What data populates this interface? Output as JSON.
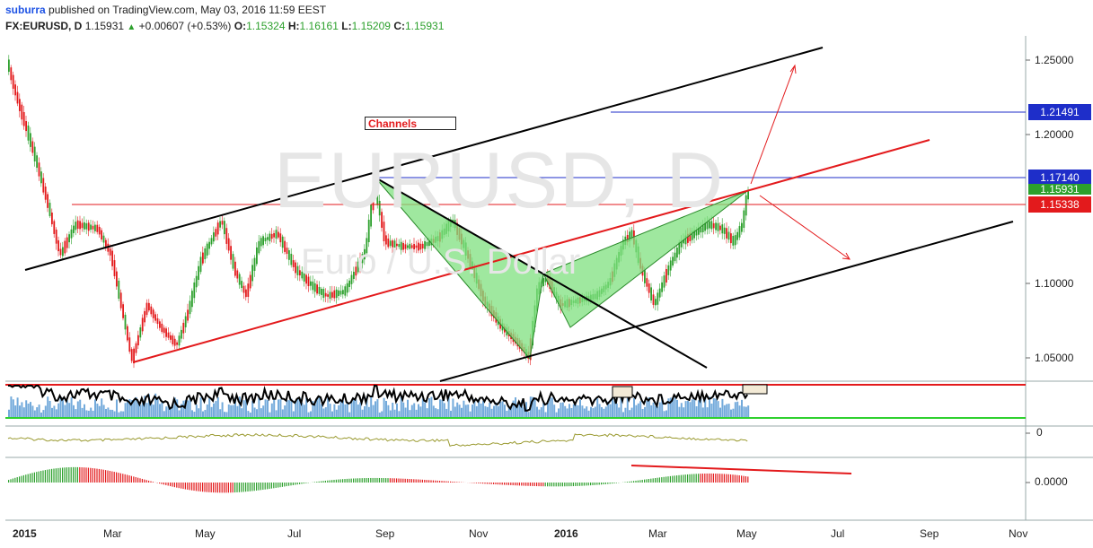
{
  "header": {
    "author": "suburra",
    "published_text": "published on TradingView.com, May 03, 2016 11:59 EEST",
    "symbol": "FX:EURUSD, D",
    "last": "1.15931",
    "change": "+0.00607 (+0.53%)",
    "open_label": "O:",
    "open": "1.15324",
    "high_label": "H:",
    "high": "1.16161",
    "low_label": "L:",
    "low": "1.15209",
    "close_label": "C:",
    "close": "1.15931"
  },
  "watermark": {
    "main": "EURUSD, D",
    "sub": "Euro / U.S. Dollar"
  },
  "annotation": {
    "channels_label": "Channels"
  },
  "price_axis": {
    "ticks": [
      "1.25000",
      "1.20000",
      "1.10000",
      "1.05000"
    ],
    "tags": [
      {
        "value": "1.21491",
        "color": "#1e2ec9"
      },
      {
        "value": "1.17140",
        "color": "#1e2ec9"
      },
      {
        "value": "1.15931",
        "color": "#2ca02c"
      },
      {
        "value": "1.15338",
        "color": "#e31a1c"
      }
    ]
  },
  "indicator_axis": {
    "osc_zero": "0",
    "macd_zero": "0.0000"
  },
  "time_axis": [
    {
      "label": "2015",
      "bold": true
    },
    {
      "label": "Mar",
      "bold": false
    },
    {
      "label": "May",
      "bold": false
    },
    {
      "label": "Jul",
      "bold": false
    },
    {
      "label": "Sep",
      "bold": false
    },
    {
      "label": "Nov",
      "bold": false
    },
    {
      "label": "2016",
      "bold": true
    },
    {
      "label": "Mar",
      "bold": false
    },
    {
      "label": "May",
      "bold": false
    },
    {
      "label": "Jul",
      "bold": false
    },
    {
      "label": "Sep",
      "bold": false
    },
    {
      "label": "Nov",
      "bold": false
    }
  ],
  "colors": {
    "up": "#2ca02c",
    "down": "#e31a1c",
    "channel": "#000000",
    "mid_channel": "#e31a1c",
    "level": "#1e2ec9",
    "pattern_fill": "#7fe07f",
    "volume": "#5b9bd5"
  }
}
